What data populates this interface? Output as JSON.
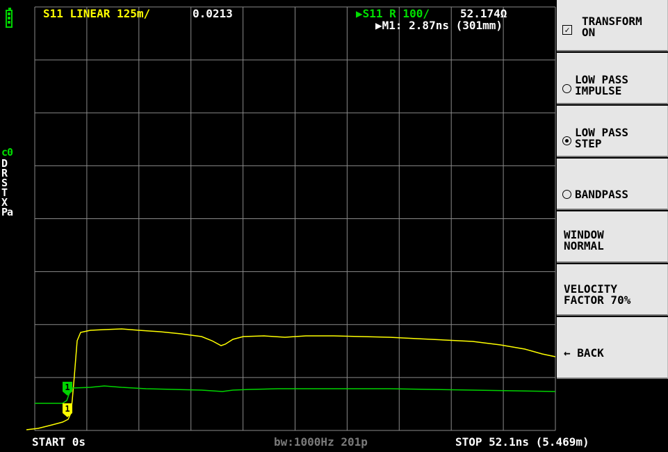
{
  "header": {
    "trace1_label": "S11 LINEAR 125m/",
    "trace1_value": "0.0213",
    "trace2_label": "▶S11 R 100/",
    "trace2_value": "52.174Ω",
    "marker_readout": "▶M1: 2.87ns (301mm)"
  },
  "status": {
    "battery_icon": "battery-icon",
    "cal_label": "c0",
    "cal_flags": [
      "D",
      "R",
      "S",
      "T",
      "X",
      "Pa"
    ]
  },
  "footer": {
    "start": "START 0s",
    "bandwidth": "bw:1000Hz 201p",
    "stop": "STOP 52.1ns (5.469m)"
  },
  "menu": {
    "items": [
      {
        "label": "TRANSFORM\nON",
        "control": "checkbox",
        "checked": true
      },
      {
        "label": "LOW PASS\nIMPULSE",
        "control": "radio",
        "checked": false
      },
      {
        "label": "LOW PASS\nSTEP",
        "control": "radio",
        "checked": true
      },
      {
        "label": "BANDPASS",
        "control": "radio",
        "checked": false
      },
      {
        "label": "WINDOW\nNORMAL",
        "control": "none"
      },
      {
        "label": "VELOCITY\nFACTOR 70%",
        "control": "none"
      },
      {
        "label": "← BACK",
        "control": "none"
      }
    ]
  },
  "markers": [
    {
      "label": "1",
      "trace": "green"
    },
    {
      "label": "1",
      "trace": "yellow"
    }
  ],
  "colors": {
    "background": "#000000",
    "grid": "#8a8a8a",
    "trace_yellow": "#ffff00",
    "trace_green": "#00d400",
    "menu_bg": "#e6e6e6"
  }
}
